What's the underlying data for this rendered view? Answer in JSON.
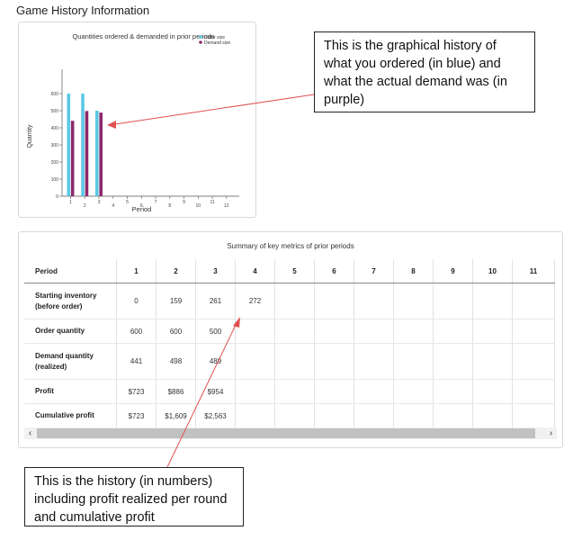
{
  "page": {
    "title": "Game History Information"
  },
  "chart_data": {
    "type": "bar",
    "title": "Quantities ordered & demanded in prior periods",
    "xlabel": "Period",
    "ylabel": "Quantity",
    "categories": [
      "1",
      "2",
      "3",
      "4",
      "5",
      "6",
      "7",
      "8",
      "9",
      "10",
      "11",
      "12"
    ],
    "series": [
      {
        "name": "Order size",
        "color": "#5bc8e6",
        "values": [
          600,
          600,
          500,
          null,
          null,
          null,
          null,
          null,
          null,
          null,
          null,
          null
        ]
      },
      {
        "name": "Demand size",
        "color": "#8b2a6e",
        "values": [
          441,
          498,
          489,
          null,
          null,
          null,
          null,
          null,
          null,
          null,
          null,
          null
        ]
      }
    ],
    "yticks": [
      0,
      100,
      200,
      300,
      400,
      500,
      600
    ],
    "ylim": [
      0,
      700
    ],
    "legend": "top-right",
    "grid": false
  },
  "table": {
    "title": "Summary of key metrics of prior periods",
    "header_label": "Period",
    "periods": [
      "1",
      "2",
      "3",
      "4",
      "5",
      "6",
      "7",
      "8",
      "9",
      "10",
      "11"
    ],
    "rows": [
      {
        "label": "Starting inventory (before order)",
        "cells": [
          "0",
          "159",
          "261",
          "272",
          "",
          "",
          "",
          "",
          "",
          "",
          ""
        ]
      },
      {
        "label": "Order quantity",
        "cells": [
          "600",
          "600",
          "500",
          "",
          "",
          "",
          "",
          "",
          "",
          "",
          ""
        ]
      },
      {
        "label": "Demand quantity (realized)",
        "cells": [
          "441",
          "498",
          "489",
          "",
          "",
          "",
          "",
          "",
          "",
          "",
          ""
        ]
      },
      {
        "label": "Profit",
        "cells": [
          "$723",
          "$886",
          "$954",
          "",
          "",
          "",
          "",
          "",
          "",
          "",
          ""
        ]
      },
      {
        "label": "Cumulative profit",
        "cells": [
          "$723",
          "$1,609",
          "$2,563",
          "",
          "",
          "",
          "",
          "",
          "",
          "",
          ""
        ]
      }
    ],
    "scroll_left_icon": "‹",
    "scroll_right_icon": "›"
  },
  "callouts": {
    "chart": "This is the graphical history of what you ordered (in blue) and what the actual demand was (in purple)",
    "table": "This is the history (in numbers) including profit realized per round and cumulative profit"
  },
  "colors": {
    "arrow": "#e05050",
    "order": "#5bc8e6",
    "demand": "#8b2a6e"
  }
}
